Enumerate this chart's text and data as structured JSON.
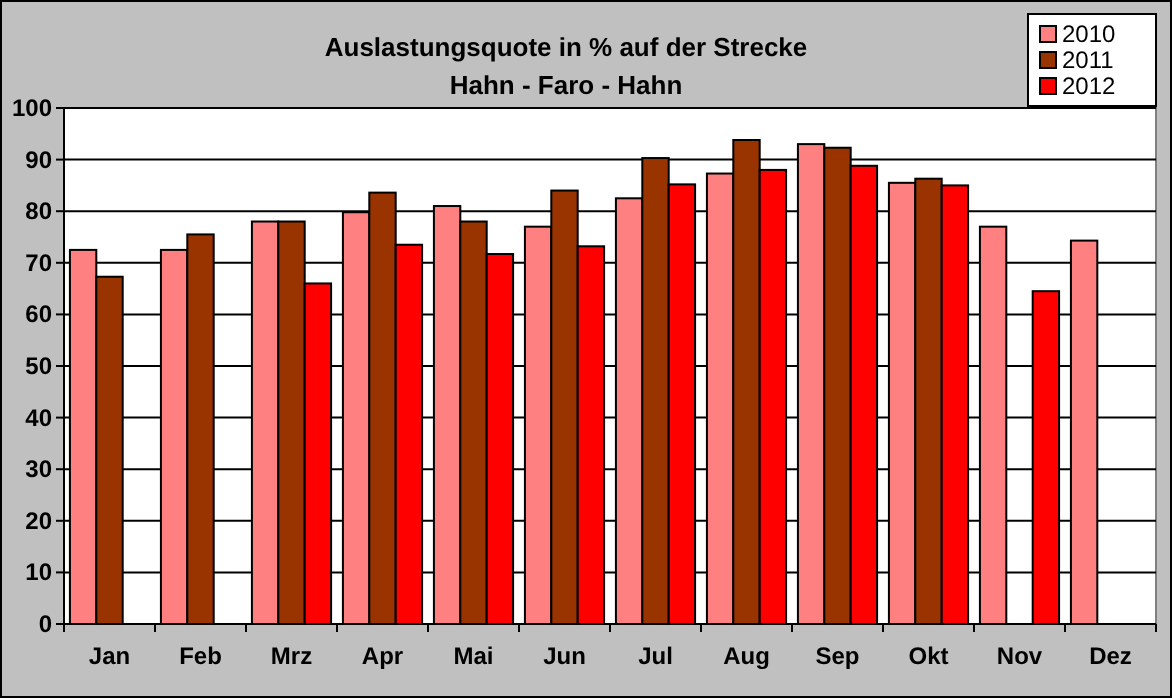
{
  "chart_data": {
    "type": "bar",
    "title": "Auslastungsquote in % auf der Strecke",
    "subtitle": "Hahn - Faro - Hahn",
    "categories": [
      "Jan",
      "Feb",
      "Mrz",
      "Apr",
      "Mai",
      "Jun",
      "Jul",
      "Aug",
      "Sep",
      "Okt",
      "Nov",
      "Dez"
    ],
    "series": [
      {
        "name": "2010",
        "color": "#ff8080",
        "values": [
          72.5,
          72.5,
          78,
          79.8,
          81,
          77,
          82.5,
          87.3,
          93,
          85.5,
          77,
          74.3
        ]
      },
      {
        "name": "2011",
        "color": "#993300",
        "values": [
          67.3,
          75.5,
          78,
          83.6,
          78,
          84,
          90.3,
          93.8,
          92.3,
          86.3,
          null,
          null
        ]
      },
      {
        "name": "2012",
        "color": "#ff0000",
        "values": [
          null,
          null,
          66,
          73.5,
          71.7,
          73.2,
          85.2,
          88,
          88.8,
          85,
          64.5,
          null
        ]
      }
    ],
    "ylim": [
      0,
      100
    ],
    "yticks": [
      0,
      10,
      20,
      30,
      40,
      50,
      60,
      70,
      80,
      90,
      100
    ],
    "grid": "y",
    "legend": "top right"
  }
}
